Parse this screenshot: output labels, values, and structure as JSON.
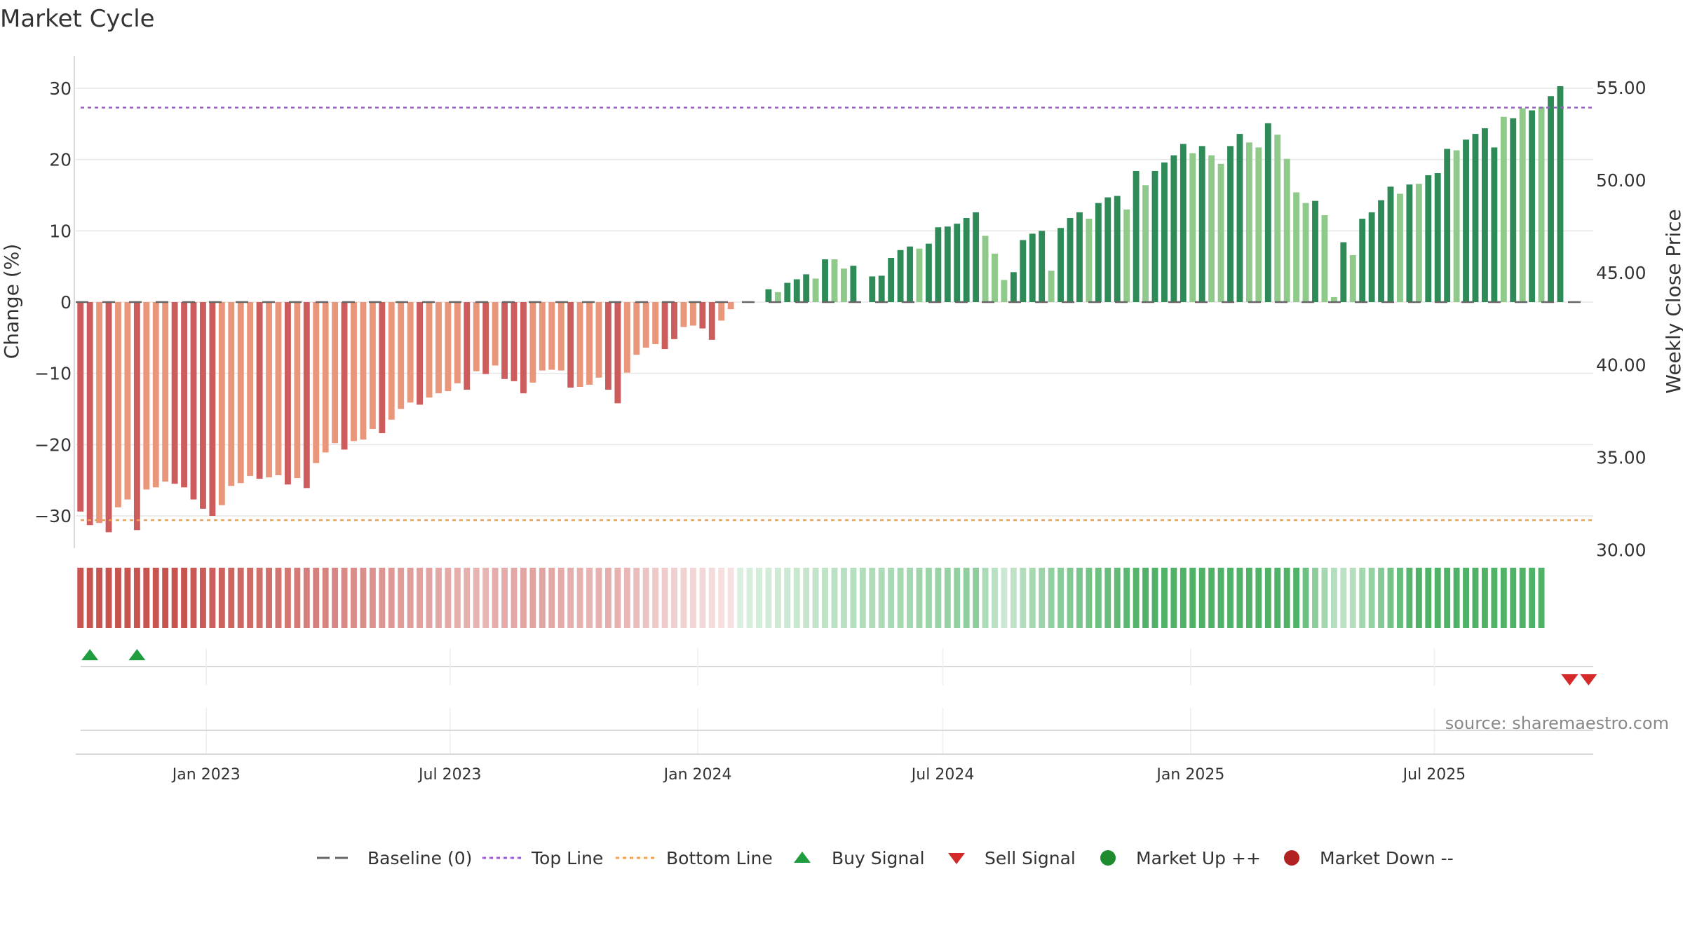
{
  "chart_data": {
    "type": "bar",
    "title": "Market Cycle",
    "ylabel_left": "Change (%)",
    "ylabel_right": "Weekly Close Price",
    "ylim_left": [
      -35,
      35
    ],
    "ylim_right": [
      27.6,
      58.6
    ],
    "yticks_left": [
      30,
      20,
      10,
      0,
      -10,
      -20,
      -30
    ],
    "ytick_labels_left": [
      "30",
      "20",
      "10",
      "0",
      "−10",
      "−20",
      "−30"
    ],
    "yticks_right": [
      55.0,
      50.0,
      45.0,
      40.0,
      35.0,
      30.0
    ],
    "ytick_labels_right": [
      "55.00",
      "50.00",
      "45.00",
      "40.00",
      "35.00",
      "30.00"
    ],
    "x_start": "2022-09-26",
    "x_end": "2025-10-27",
    "week_dates": [
      "2022-09-26",
      "2022-10-03",
      "2022-10-10",
      "2022-10-17",
      "2022-10-24",
      "2022-10-31",
      "2022-11-07",
      "2022-11-14",
      "2022-11-21",
      "2022-11-28",
      "2022-12-05",
      "2022-12-12",
      "2022-12-19",
      "2022-12-26",
      "2023-01-02",
      "2023-01-09",
      "2023-01-16",
      "2023-01-23",
      "2023-01-30",
      "2023-02-06",
      "2023-02-13",
      "2023-02-20",
      "2023-02-27",
      "2023-03-06",
      "2023-03-13",
      "2023-03-20",
      "2023-03-27",
      "2023-04-03",
      "2023-04-10",
      "2023-04-17",
      "2023-04-24",
      "2023-05-01",
      "2023-05-08",
      "2023-05-15",
      "2023-05-22",
      "2023-05-29",
      "2023-06-05",
      "2023-06-12",
      "2023-06-19",
      "2023-06-26",
      "2023-07-03",
      "2023-07-10",
      "2023-07-17",
      "2023-07-24",
      "2023-07-31",
      "2023-08-07",
      "2023-08-14",
      "2023-08-21",
      "2023-08-28",
      "2023-09-04",
      "2023-09-11",
      "2023-09-18",
      "2023-09-25",
      "2023-10-02",
      "2023-10-09",
      "2023-10-16",
      "2023-10-23",
      "2023-10-30",
      "2023-11-06",
      "2023-11-13",
      "2023-11-20",
      "2023-11-27",
      "2023-12-04",
      "2023-12-11",
      "2023-12-18",
      "2023-12-25",
      "2024-01-01",
      "2024-01-08",
      "2024-01-15",
      "2024-01-22",
      "2024-01-29",
      "2024-02-05",
      "2024-02-12",
      "2024-02-19",
      "2024-02-26",
      "2024-03-04",
      "2024-03-11",
      "2024-03-18",
      "2024-03-25",
      "2024-04-01",
      "2024-04-08",
      "2024-04-15",
      "2024-04-22",
      "2024-04-29",
      "2024-05-06",
      "2024-05-13",
      "2024-05-20",
      "2024-05-27",
      "2024-06-03",
      "2024-06-10",
      "2024-06-17",
      "2024-06-24",
      "2024-07-01",
      "2024-07-08",
      "2024-07-15",
      "2024-07-22",
      "2024-07-29",
      "2024-08-05",
      "2024-08-12",
      "2024-08-19",
      "2024-08-26",
      "2024-09-02",
      "2024-09-09",
      "2024-09-16",
      "2024-09-23",
      "2024-09-30",
      "2024-10-07",
      "2024-10-14",
      "2024-10-21",
      "2024-10-28",
      "2024-11-04",
      "2024-11-11",
      "2024-11-18",
      "2024-11-25",
      "2024-12-02",
      "2024-12-09",
      "2024-12-16",
      "2024-12-23",
      "2024-12-30",
      "2025-01-06",
      "2025-01-13",
      "2025-01-20",
      "2025-01-27",
      "2025-02-03",
      "2025-02-10",
      "2025-02-17",
      "2025-02-24",
      "2025-03-03",
      "2025-03-10",
      "2025-03-17",
      "2025-03-24",
      "2025-03-31",
      "2025-04-07",
      "2025-04-14",
      "2025-04-21",
      "2025-04-28",
      "2025-05-05",
      "2025-05-12",
      "2025-05-19",
      "2025-05-26",
      "2025-06-02",
      "2025-06-09",
      "2025-06-16",
      "2025-06-23",
      "2025-06-30",
      "2025-07-07",
      "2025-07-14",
      "2025-07-21",
      "2025-07-28",
      "2025-08-04",
      "2025-08-11",
      "2025-08-18",
      "2025-08-25",
      "2025-09-01",
      "2025-09-08",
      "2025-09-15",
      "2025-09-22",
      "2025-09-29",
      "2025-10-06",
      "2025-10-13",
      "2025-10-20"
    ],
    "change_pct": [
      -29.4,
      -31.3,
      -31.0,
      -32.3,
      -28.8,
      -27.7,
      -32.0,
      -26.3,
      -26.0,
      -25.2,
      -25.5,
      -26.0,
      -27.7,
      -29.0,
      -30.0,
      -28.5,
      -25.8,
      -25.4,
      -24.4,
      -24.8,
      -24.6,
      -24.3,
      -25.6,
      -24.7,
      -26.1,
      -22.6,
      -21.1,
      -19.8,
      -20.7,
      -19.5,
      -19.3,
      -17.8,
      -18.4,
      -16.5,
      -15.0,
      -14.1,
      -14.4,
      -13.4,
      -12.8,
      -12.5,
      -11.4,
      -12.3,
      -9.7,
      -10.1,
      -8.9,
      -10.8,
      -11.1,
      -12.8,
      -11.3,
      -9.6,
      -9.5,
      -9.6,
      -12.0,
      -11.9,
      -11.6,
      -10.6,
      -12.3,
      -14.2,
      -9.9,
      -7.4,
      -6.4,
      -5.9,
      -6.6,
      -5.2,
      -3.5,
      -3.3,
      -3.7,
      -5.3,
      -2.6,
      -1.0,
      0,
      0,
      0,
      1.8,
      1.4,
      2.7,
      3.2,
      3.9,
      3.3,
      6.0,
      6.0,
      4.7,
      5.1,
      0,
      3.6,
      3.7,
      6.2,
      7.3,
      7.8,
      7.5,
      8.2,
      10.5,
      10.6,
      11.0,
      11.8,
      12.6,
      9.3,
      6.8,
      3.1,
      4.2,
      8.7,
      9.6,
      10.0,
      4.4,
      10.4,
      11.8,
      12.6,
      11.7,
      13.9,
      14.7,
      14.9,
      13.0,
      18.4,
      16.4,
      18.4,
      19.6,
      20.6,
      22.2,
      20.9,
      21.9,
      20.6,
      19.4,
      21.9,
      23.6,
      22.4,
      21.7,
      25.1,
      23.5,
      20.1,
      15.4,
      13.9,
      14.2,
      12.2,
      0.7,
      8.4,
      6.6,
      11.7,
      12.6,
      14.3,
      16.2,
      15.2,
      16.5,
      16.6,
      17.8,
      18.1,
      21.5,
      21.3,
      22.8,
      23.6,
      24.4,
      21.7,
      26.0,
      25.8,
      27.2,
      26.9,
      27.4,
      28.9,
      30.3
    ],
    "bar_shade": [
      "dark",
      "dark",
      "light",
      "dark",
      "light",
      "light",
      "dark",
      "light",
      "light",
      "light",
      "dark",
      "dark",
      "dark",
      "dark",
      "dark",
      "light",
      "light",
      "light",
      "light",
      "dark",
      "light",
      "light",
      "dark",
      "light",
      "dark",
      "light",
      "light",
      "light",
      "dark",
      "light",
      "light",
      "light",
      "dark",
      "light",
      "light",
      "light",
      "dark",
      "light",
      "light",
      "light",
      "light",
      "dark",
      "light",
      "dark",
      "light",
      "dark",
      "dark",
      "dark",
      "light",
      "light",
      "light",
      "light",
      "dark",
      "light",
      "light",
      "light",
      "dark",
      "dark",
      "light",
      "light",
      "light",
      "light",
      "dark",
      "dark",
      "light",
      "light",
      "dark",
      "dark",
      "light",
      "light",
      "dark",
      "dark",
      "dark",
      "dark",
      "light",
      "dark",
      "dark",
      "dark",
      "light",
      "dark",
      "light",
      "light",
      "dark",
      "dark",
      "dark",
      "dark",
      "dark",
      "dark",
      "dark",
      "light",
      "dark",
      "dark",
      "dark",
      "dark",
      "dark",
      "dark",
      "light",
      "light",
      "light",
      "dark",
      "dark",
      "dark",
      "dark",
      "light",
      "dark",
      "dark",
      "dark",
      "light",
      "dark",
      "dark",
      "dark",
      "light",
      "dark",
      "light",
      "dark",
      "dark",
      "dark",
      "dark",
      "light",
      "dark",
      "light",
      "light",
      "dark",
      "dark",
      "light",
      "light",
      "dark",
      "light",
      "light",
      "light",
      "light",
      "dark",
      "light",
      "light",
      "dark",
      "light",
      "dark",
      "dark",
      "dark",
      "dark",
      "light",
      "dark",
      "light",
      "dark",
      "dark",
      "dark",
      "light",
      "dark",
      "dark",
      "dark",
      "dark",
      "light",
      "dark",
      "light",
      "dark",
      "light",
      "dark",
      "dark",
      "dark"
    ],
    "strip_trend": [
      -1.0,
      -1.0,
      -1.0,
      -1.0,
      -1.0,
      -1.0,
      -1.0,
      -1.0,
      -1.0,
      -1.0,
      -1.0,
      -1.0,
      -0.97,
      -0.95,
      -0.93,
      -0.91,
      -0.89,
      -0.87,
      -0.85,
      -0.83,
      -0.81,
      -0.79,
      -0.77,
      -0.75,
      -0.73,
      -0.71,
      -0.69,
      -0.67,
      -0.65,
      -0.63,
      -0.61,
      -0.59,
      -0.57,
      -0.55,
      -0.53,
      -0.51,
      -0.49,
      -0.47,
      -0.45,
      -0.43,
      -0.41,
      -0.39,
      -0.37,
      -0.35,
      -0.4,
      -0.42,
      -0.44,
      -0.46,
      -0.48,
      -0.46,
      -0.44,
      -0.42,
      -0.4,
      -0.38,
      -0.36,
      -0.38,
      -0.4,
      -0.38,
      -0.34,
      -0.3,
      -0.26,
      -0.22,
      -0.2,
      -0.18,
      -0.16,
      -0.14,
      -0.12,
      -0.1,
      -0.08,
      -0.06,
      0.1,
      0.12,
      0.14,
      0.16,
      0.18,
      0.2,
      0.22,
      0.24,
      0.26,
      0.28,
      0.3,
      0.32,
      0.34,
      0.36,
      0.38,
      0.4,
      0.42,
      0.44,
      0.46,
      0.48,
      0.5,
      0.52,
      0.54,
      0.56,
      0.58,
      0.6,
      0.4,
      0.3,
      0.2,
      0.28,
      0.36,
      0.44,
      0.5,
      0.56,
      0.62,
      0.68,
      0.72,
      0.76,
      0.8,
      0.84,
      0.88,
      0.92,
      0.96,
      1.0,
      1.0,
      1.0,
      1.0,
      1.0,
      1.0,
      1.0,
      1.0,
      1.0,
      1.0,
      1.0,
      1.0,
      1.0,
      1.0,
      1.0,
      1.0,
      1.0,
      0.8,
      0.6,
      0.45,
      0.35,
      0.3,
      0.35,
      0.45,
      0.55,
      0.65,
      0.75,
      0.85,
      0.95,
      1.0,
      1.0,
      1.0,
      1.0,
      1.0,
      1.0,
      1.0,
      1.0,
      1.0,
      1.0,
      1.0,
      1.0,
      1.0,
      1.0
    ],
    "top_line": 27.3,
    "bottom_line": -30.6,
    "x_ticks": [
      {
        "date": "2023-01-01",
        "label": "Jan 2023"
      },
      {
        "date": "2023-07-01",
        "label": "Jul 2023"
      },
      {
        "date": "2024-01-01",
        "label": "Jan 2024"
      },
      {
        "date": "2024-07-01",
        "label": "Jul 2024"
      },
      {
        "date": "2025-01-01",
        "label": "Jan 2025"
      },
      {
        "date": "2025-07-01",
        "label": "Jul 2025"
      }
    ],
    "buy_signals": [
      "2022-10-03",
      "2022-11-07"
    ],
    "sell_signals": [
      "2025-10-06",
      "2025-10-20"
    ],
    "legend": [
      {
        "key": "baseline",
        "label": "Baseline (0)"
      },
      {
        "key": "top",
        "label": "Top Line"
      },
      {
        "key": "bottom",
        "label": "Bottom Line"
      },
      {
        "key": "buy",
        "label": "Buy Signal"
      },
      {
        "key": "sell",
        "label": "Sell Signal"
      },
      {
        "key": "up",
        "label": "Market Up ++"
      },
      {
        "key": "down",
        "label": "Market Down --"
      }
    ],
    "grid": true,
    "legend_position": "bottom-center",
    "source": "source: sharemaestro.com"
  },
  "colors": {
    "bar_up_dark": "#2e8b57",
    "bar_up_light": "#8fca8a",
    "bar_down_dark": "#cd5c5c",
    "bar_down_light": "#e9967a",
    "strip_red": "#c85450",
    "strip_green": "#4fb266",
    "baseline": "#666666",
    "top_line": "#9b59d0",
    "bottom_line": "#f0a050",
    "buy": "#1f9d3f",
    "sell": "#d42a2a",
    "market_up": "#1e8c2e",
    "market_down": "#b22222",
    "grid": "#e6e6e6",
    "text": "#333333",
    "source_text": "#888888"
  }
}
